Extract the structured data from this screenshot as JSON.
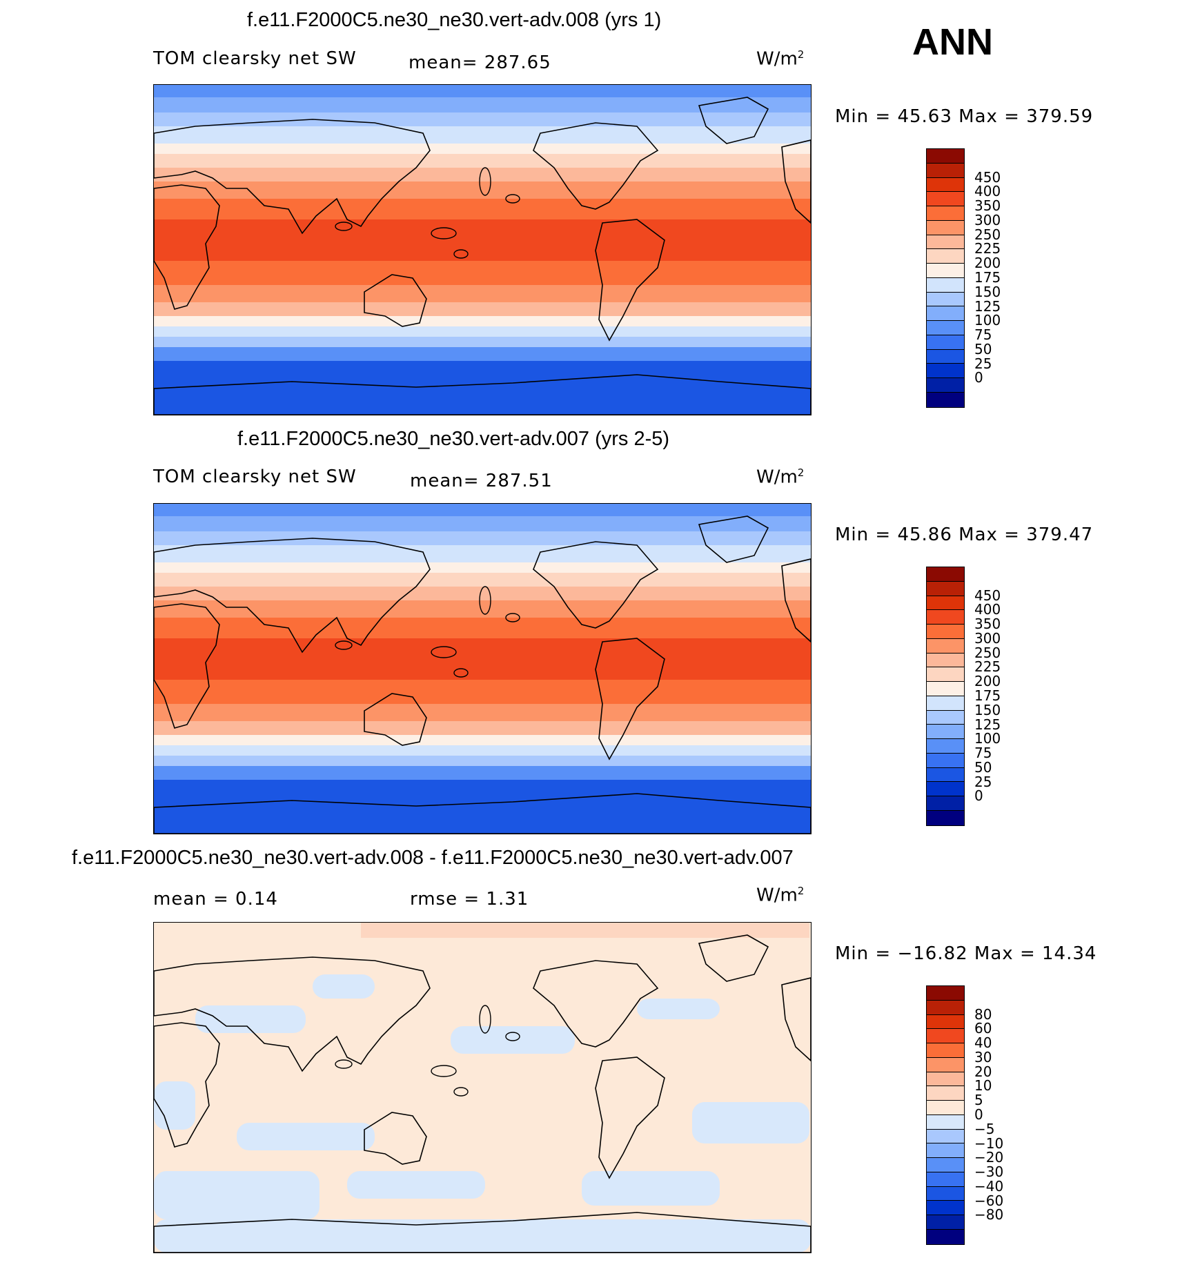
{
  "season": "ANN",
  "colors": {
    "abs_scale": [
      "#00007f",
      "#0020a6",
      "#0033cc",
      "#1b56e3",
      "#3872f2",
      "#5990f7",
      "#82aefb",
      "#a9c8fd",
      "#d2e4fc",
      "#fdf0e6",
      "#fdd6c1",
      "#fcb89a",
      "#fc9467",
      "#fb6e38",
      "#f0481f",
      "#de3409",
      "#b92106",
      "#8b0a02"
    ],
    "diff_scale": [
      "#00007f",
      "#0020a6",
      "#0033cc",
      "#1b56e3",
      "#3872f2",
      "#5990f7",
      "#82aefb",
      "#a9c8fd",
      "#d8e8fb",
      "#fde9d8",
      "#fdd6c1",
      "#fcb89a",
      "#fc9467",
      "#fb6e38",
      "#f0481f",
      "#de3409",
      "#b92106",
      "#8b0a02"
    ],
    "coastline": "#000000"
  },
  "panels": [
    {
      "title": "f.e11.F2000C5.ne30_ne30.vert-adv.008 (yrs 1)",
      "variable": "TOM clearsky net SW",
      "stat": "mean= 287.65",
      "units_base": "W/m",
      "units_exp": "2",
      "minmax": "Min =   45.63 Max =  379.59",
      "colorbar_labels": [
        "450",
        "400",
        "350",
        "300",
        "250",
        "225",
        "200",
        "175",
        "150",
        "125",
        "100",
        "75",
        "50",
        "25",
        "0"
      ]
    },
    {
      "title": "f.e11.F2000C5.ne30_ne30.vert-adv.007 (yrs 2-5)",
      "variable": "TOM clearsky net SW",
      "stat": "mean= 287.51",
      "units_base": "W/m",
      "units_exp": "2",
      "minmax": "Min =   45.86 Max =  379.47",
      "colorbar_labels": [
        "450",
        "400",
        "350",
        "300",
        "250",
        "225",
        "200",
        "175",
        "150",
        "125",
        "100",
        "75",
        "50",
        "25",
        "0"
      ]
    },
    {
      "title": "f.e11.F2000C5.ne30_ne30.vert-adv.008 - f.e11.F2000C5.ne30_ne30.vert-adv.007",
      "stat_mean": "mean =    0.14",
      "stat_rmse": "rmse =    1.31",
      "units_base": "W/m",
      "units_exp": "2",
      "minmax": "Min = −16.82 Max =   14.34",
      "colorbar_labels": [
        "80",
        "60",
        "40",
        "30",
        "20",
        "10",
        "5",
        "0",
        "−5",
        "−10",
        "−20",
        "−30",
        "−40",
        "−60",
        "−80"
      ]
    }
  ]
}
